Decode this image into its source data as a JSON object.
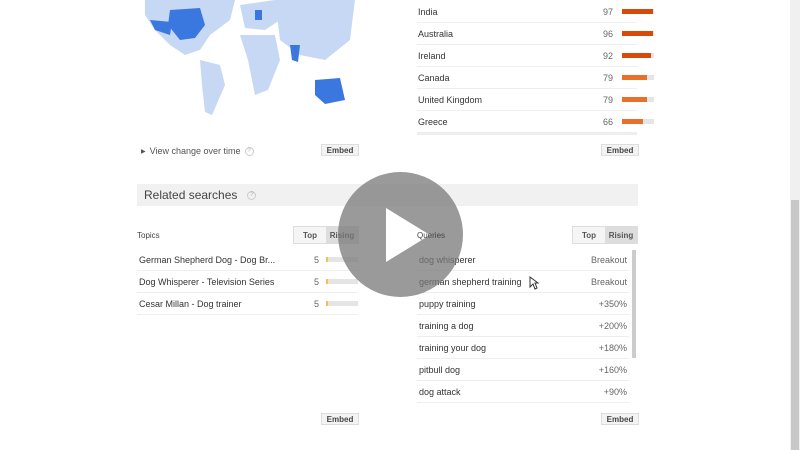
{
  "regions": {
    "items": [
      {
        "name": "India",
        "value": 97
      },
      {
        "name": "Australia",
        "value": 96
      },
      {
        "name": "Ireland",
        "value": 92
      },
      {
        "name": "Canada",
        "value": 79
      },
      {
        "name": "United Kingdom",
        "value": 79
      },
      {
        "name": "Greece",
        "value": 66
      }
    ],
    "embed_label": "Embed"
  },
  "map": {
    "view_change_label": "View change over time",
    "embed_label": "Embed",
    "highlight_color": "#3a78e0",
    "base_color": "#c7d8f5"
  },
  "related": {
    "title": "Related searches",
    "topics": {
      "header": "Topics",
      "tab_top": "Top",
      "tab_rising": "Rising",
      "selected": "Rising",
      "embed_label": "Embed",
      "items": [
        {
          "label": "German Shepherd Dog - Dog Br...",
          "value": "5"
        },
        {
          "label": "Dog Whisperer - Television Series",
          "value": "5"
        },
        {
          "label": "Cesar Millan - Dog trainer",
          "value": "5"
        }
      ]
    },
    "queries": {
      "header": "Queries",
      "tab_top": "Top",
      "tab_rising": "Rising",
      "selected": "Rising",
      "embed_label": "Embed",
      "items": [
        {
          "label": "dog whisperer",
          "value": "Breakout"
        },
        {
          "label": "german shepherd training",
          "value": "Breakout"
        },
        {
          "label": "puppy training",
          "value": "+350%"
        },
        {
          "label": "training a dog",
          "value": "+200%"
        },
        {
          "label": "training your dog",
          "value": "+180%"
        },
        {
          "label": "pitbull dog",
          "value": "+160%"
        },
        {
          "label": "dog attack",
          "value": "+90%"
        }
      ]
    }
  },
  "colors": {
    "bar_high": "#d84a0a",
    "bar_mid": "#e8702a",
    "bar_topic": "#f2c14e"
  },
  "video": {
    "icon": "play-icon"
  }
}
